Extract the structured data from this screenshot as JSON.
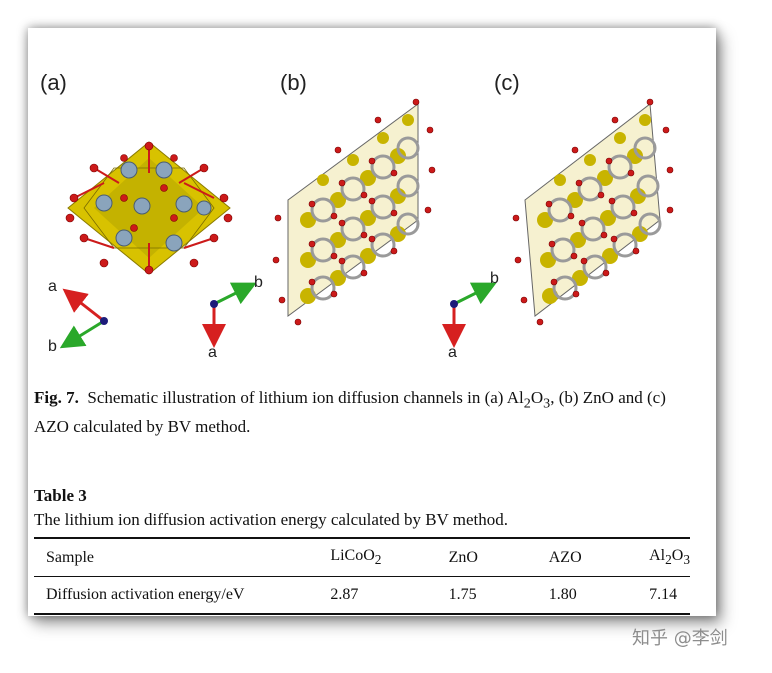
{
  "panels": {
    "a": "(a)",
    "b": "(b)",
    "c": "(c)"
  },
  "axes": {
    "a": "a",
    "b": "b"
  },
  "caption": {
    "label": "Fig. 7.",
    "text_1": "Schematic illustration of lithium ion diffusion channels in (a) Al",
    "sub_1": "2",
    "text_2": "O",
    "sub_2": "3",
    "text_3": ", (b) ZnO and (c) AZO calculated by BV method."
  },
  "table": {
    "title": "Table 3",
    "subtitle": "The lithium ion diffusion activation energy calculated by BV method.",
    "headers": {
      "sample": "Sample",
      "licoo2_main": "LiCoO",
      "licoo2_sub": "2",
      "zno": "ZnO",
      "azo": "AZO",
      "al_main": "Al",
      "al_sub1": "2",
      "al_o": "O",
      "al_sub2": "3"
    },
    "row": {
      "label": "Diffusion activation energy/eV",
      "licoo2": "2.87",
      "zno": "1.75",
      "azo": "1.80",
      "al2o3": "7.14"
    }
  },
  "watermark": "知乎 @李剑",
  "colors": {
    "polyhedra": "#c8b400",
    "oxygen": "#cc1a1a",
    "ion": "#8aa4bc",
    "axis_a": "#d62020",
    "axis_b": "#2aa82a",
    "origin": "#1c1c7a"
  }
}
